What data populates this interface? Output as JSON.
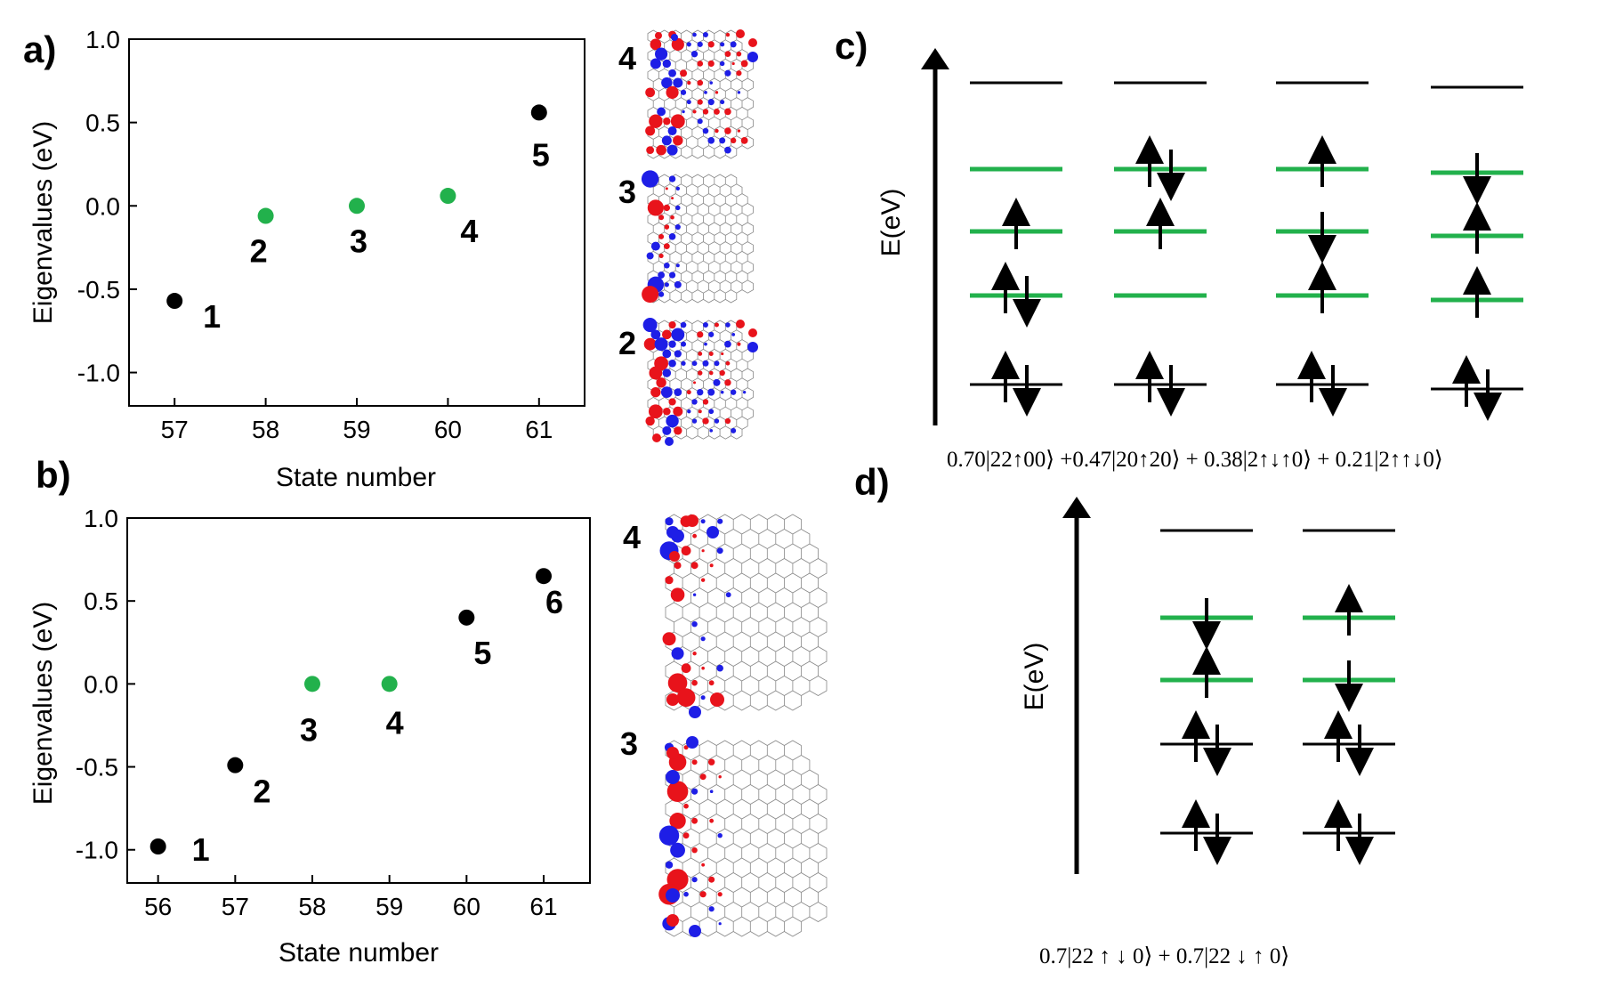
{
  "panel_labels": [
    "a)",
    "b)",
    "c)",
    "d)"
  ],
  "colors": {
    "green": "#22b14c",
    "black": "#000000",
    "red": "#e8131b",
    "blue": "#1e1ee6",
    "lattice": "#888888"
  },
  "chart_data": [
    {
      "type": "scatter",
      "panel": "a)",
      "xlabel": "State number",
      "ylabel": "Eigenvalues (eV)",
      "xlim": [
        56.5,
        61.5
      ],
      "ylim": [
        -1.2,
        1.0
      ],
      "xticks": [
        57,
        58,
        59,
        60,
        61
      ],
      "yticks": [
        1.0,
        0.5,
        0.0,
        -0.5,
        -1.0
      ],
      "ytick_labels": [
        "1.0",
        "0.5",
        "0.0",
        "-0.5",
        "-1.0"
      ],
      "points": [
        {
          "x": 57,
          "y": -0.57,
          "color": "black",
          "label": "1"
        },
        {
          "x": 58,
          "y": -0.06,
          "color": "green",
          "label": "2"
        },
        {
          "x": 59,
          "y": 0.0,
          "color": "green",
          "label": "3"
        },
        {
          "x": 60,
          "y": 0.06,
          "color": "green",
          "label": "4"
        },
        {
          "x": 61,
          "y": 0.56,
          "color": "black",
          "label": "5"
        }
      ]
    },
    {
      "type": "scatter",
      "panel": "b)",
      "xlabel": "State number",
      "ylabel": "Eigenvalues (eV)",
      "xlim": [
        55.6,
        61.6
      ],
      "ylim": [
        -1.2,
        1.0
      ],
      "xticks": [
        56,
        57,
        58,
        59,
        60,
        61
      ],
      "yticks": [
        1.0,
        0.5,
        0.0,
        -0.5,
        -1.0
      ],
      "ytick_labels": [
        "1.0",
        "0.5",
        "0.0",
        "-0.5",
        "-1.0"
      ],
      "points": [
        {
          "x": 56,
          "y": -0.98,
          "color": "black",
          "label": "1"
        },
        {
          "x": 57,
          "y": -0.49,
          "color": "black",
          "label": "2"
        },
        {
          "x": 58,
          "y": 0.0,
          "color": "green",
          "label": "3"
        },
        {
          "x": 59,
          "y": 0.0,
          "color": "green",
          "label": "4"
        },
        {
          "x": 60,
          "y": 0.4,
          "color": "black",
          "label": "5"
        },
        {
          "x": 61,
          "y": 0.65,
          "color": "black",
          "label": "6"
        }
      ]
    }
  ],
  "orbital_labels": {
    "a": [
      "4",
      "3",
      "2"
    ],
    "b": [
      "4",
      "3"
    ]
  },
  "diagram_c": {
    "axis_label": "E(eV)",
    "formula": "0.70|22↑00⟩ +0.47|20↑20⟩ + 0.38|2↑↓↑0⟩ + 0.21|2↑↑↓0⟩",
    "configurations": [
      [
        "",
        "↑",
        "↑↓",
        "↑↓"
      ],
      [
        "↑↓",
        "↑",
        "",
        "↑↓"
      ],
      [
        "↑",
        "↓",
        "↑",
        "↑↓"
      ],
      [
        "↓",
        "↑",
        "↑",
        "↑↓"
      ]
    ]
  },
  "diagram_d": {
    "axis_label": "E(eV)",
    "formula": "0.7|22 ↑ ↓ 0⟩ + 0.7|22 ↓ ↑ 0⟩",
    "configurations": [
      [
        "↓",
        "↑",
        "↑↓",
        "↑↓"
      ],
      [
        "↑",
        "↓",
        "↑↓",
        "↑↓"
      ]
    ]
  }
}
